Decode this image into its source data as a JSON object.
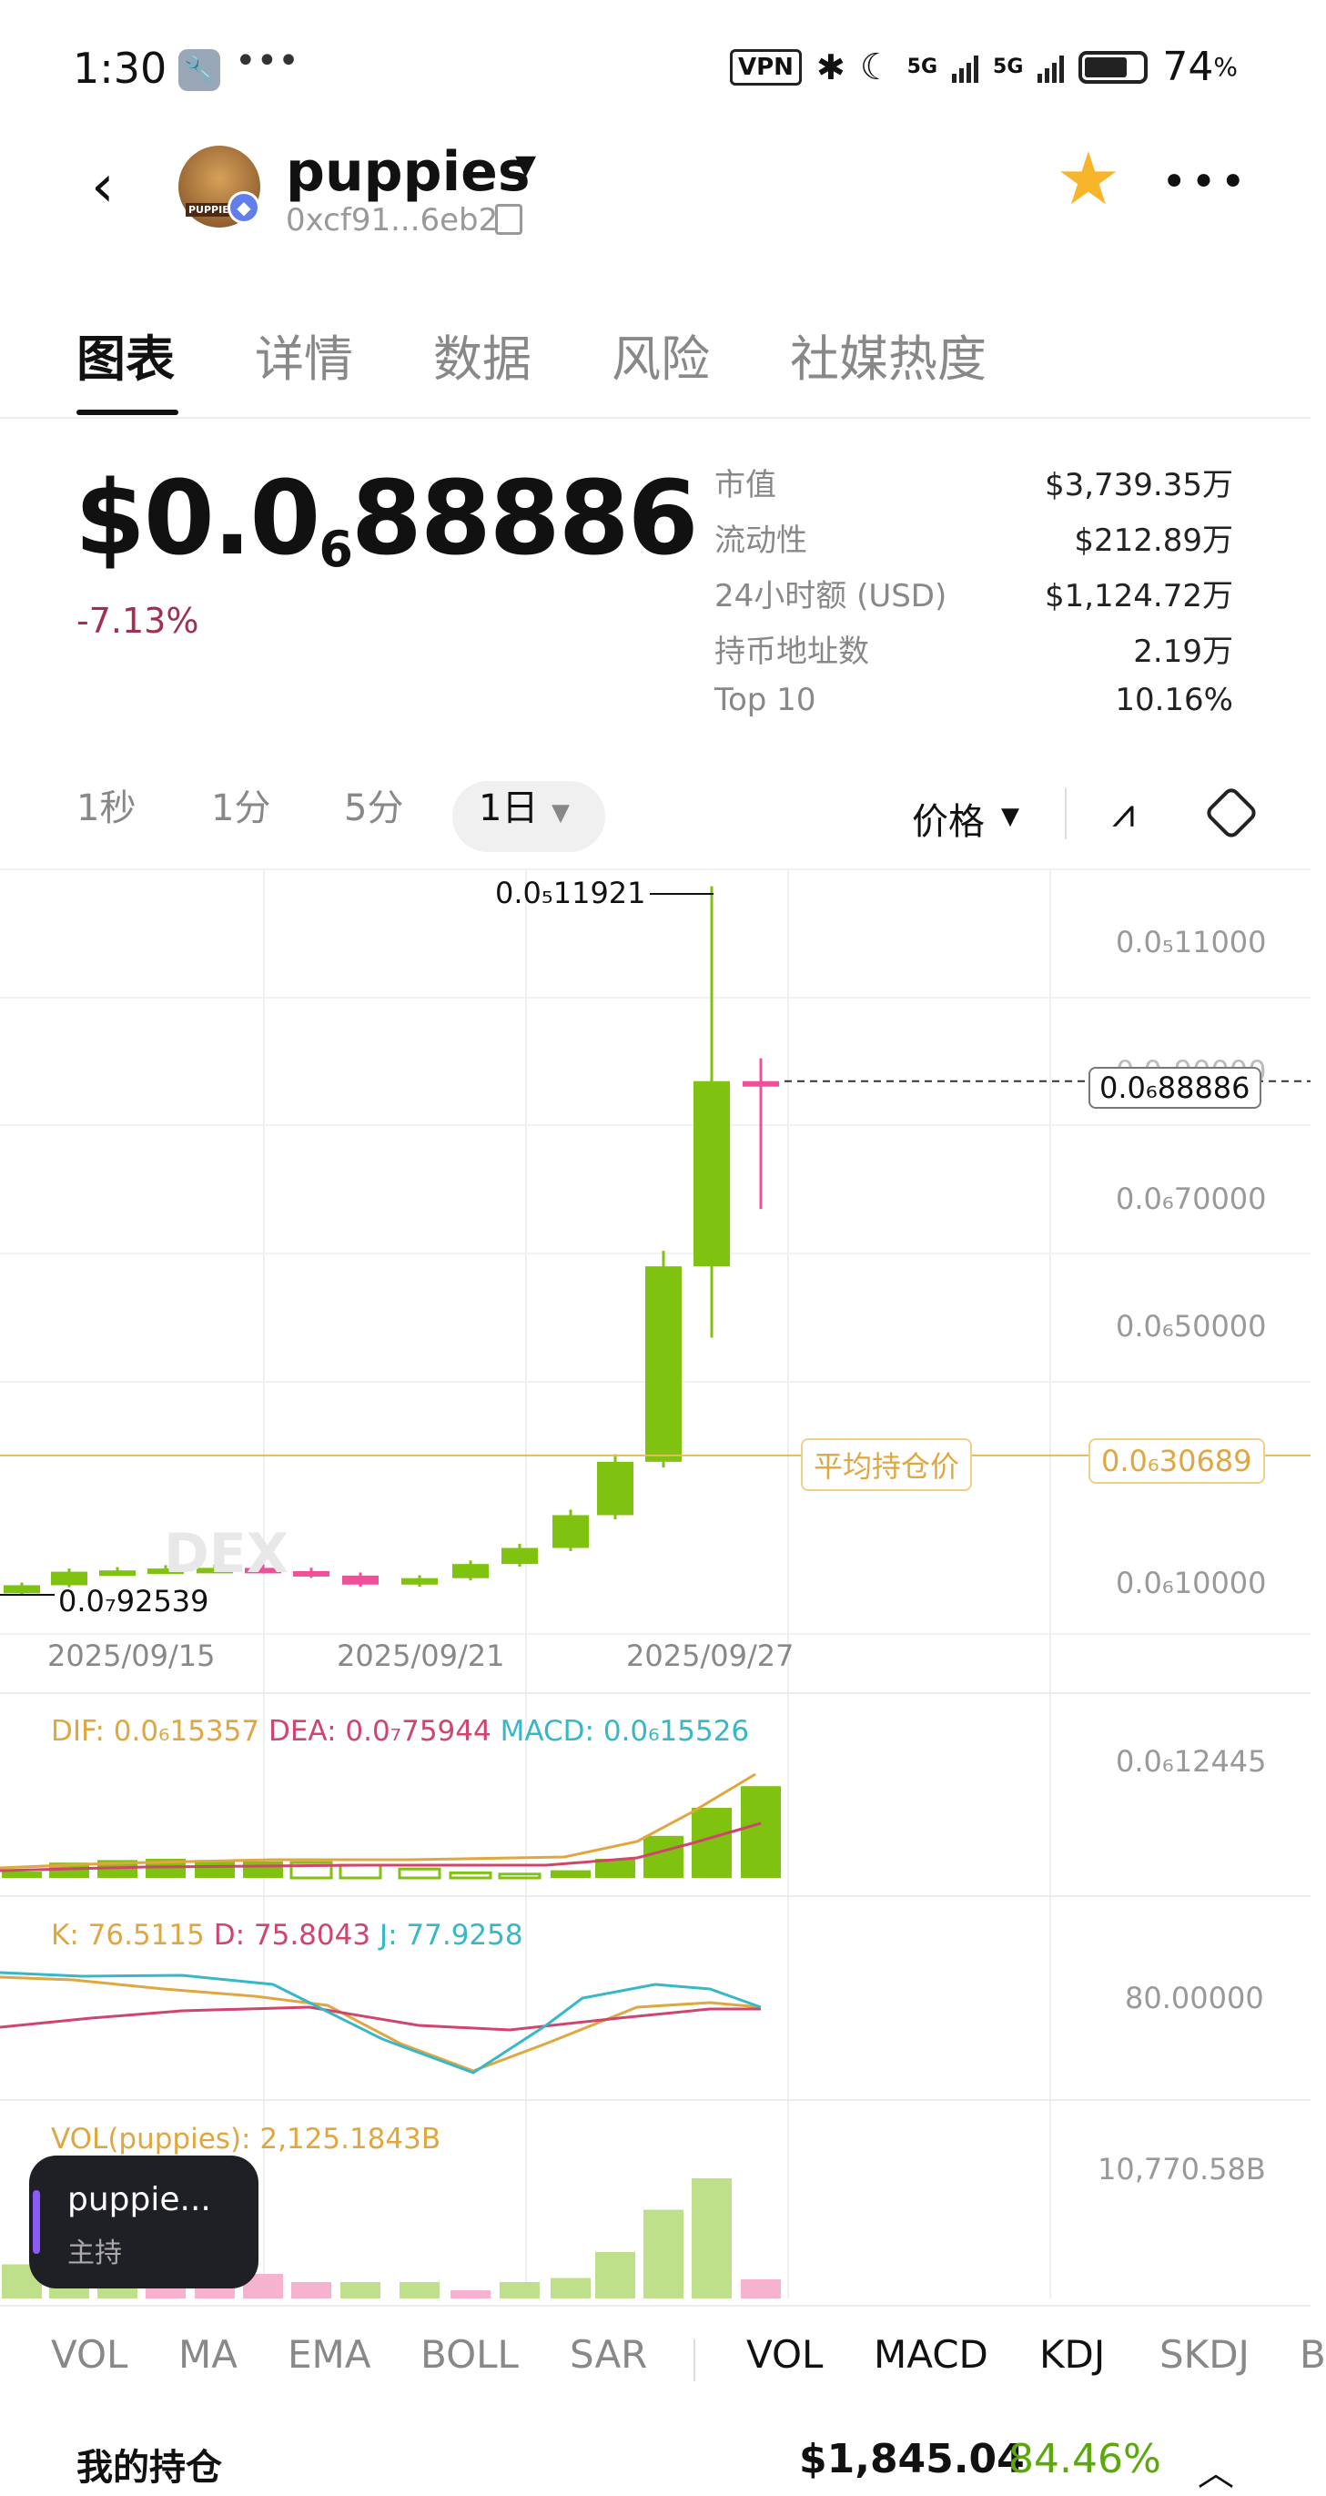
{
  "status_bar": {
    "time": "1:30",
    "icons": [
      "wrench-icon",
      "more-dots-icon"
    ],
    "vpn": "VPN",
    "net1": "5G",
    "net2": "5G",
    "battery": "74",
    "battery_unit": "%"
  },
  "token": {
    "name": "puppies",
    "address": "0xcf91...6eb2",
    "avatar_text": "PUPPIES"
  },
  "tabs": [
    "图表",
    "详情",
    "数据",
    "风险",
    "社媒热度"
  ],
  "price": {
    "main": "$0.0",
    "sub": "6",
    "rest": "88886",
    "change": "-7.13%"
  },
  "stats": [
    {
      "k": "市值",
      "v": "$3,739.35万"
    },
    {
      "k": "流动性",
      "v": "$212.89万"
    },
    {
      "k": "24小时额 (USD)",
      "v": "$1,124.72万"
    },
    {
      "k": "持币地址数",
      "v": "2.19万"
    },
    {
      "k": "Top 10",
      "v": "10.16%"
    }
  ],
  "timeframes": [
    "1秒",
    "1分",
    "5分",
    "1日"
  ],
  "price_mode": "价格",
  "chart": {
    "high_label": "0.0₅11921",
    "low_label": "0.0₇92539",
    "y_labels": [
      "0.0₅11000",
      "0.0₆90000",
      "0.0₆70000",
      "0.0₆50000",
      "0.0₆10000"
    ],
    "current_label": "0.0₆88886",
    "avg_label": "平均持仓价",
    "avg_value": "0.0₆30689",
    "x_labels": [
      "2025/09/15",
      "2025/09/21",
      "2025/09/27"
    ],
    "watermark": "DEX",
    "colors": {
      "up": "#7fc20f",
      "down": "#f0509a",
      "avg": "#e8b95a"
    }
  },
  "chart_data": [
    {
      "type": "candlestick",
      "x": [
        "2025/09/13",
        "2025/09/14",
        "2025/09/15",
        "2025/09/16",
        "2025/09/17",
        "2025/09/18",
        "2025/09/19",
        "2025/09/20",
        "2025/09/21",
        "2025/09/22",
        "2025/09/23",
        "2025/09/24",
        "2025/09/25",
        "2025/09/26",
        "2025/09/27",
        "2025/09/28"
      ],
      "open": [
        9.25e-08,
        1.05e-07,
        1.26e-07,
        1.28e-07,
        1.31e-07,
        1.32e-07,
        1.27e-07,
        1.2e-07,
        1.06e-07,
        1.16e-07,
        1.38e-07,
        1.63e-07,
        2.14e-07,
        2.97e-07,
        6.01e-07,
        8.89e-07
      ],
      "close": [
        1.05e-07,
        1.26e-07,
        1.28e-07,
        1.31e-07,
        1.32e-07,
        1.27e-07,
        1.2e-07,
        1.06e-07,
        1.16e-07,
        1.38e-07,
        1.63e-07,
        2.14e-07,
        2.97e-07,
        6.01e-07,
        8.89e-07,
        8.88e-07
      ],
      "ylabel": "",
      "xlabel": ""
    },
    {
      "type": "line",
      "name": "MACD",
      "series": [
        {
          "name": "DIF",
          "value": "0.0₆15357"
        },
        {
          "name": "DEA",
          "value": "0.0₇75944"
        },
        {
          "name": "MACD",
          "value": "0.0₆15526"
        }
      ],
      "y_label": "0.0₆12445"
    },
    {
      "type": "line",
      "name": "KDJ",
      "series": [
        {
          "name": "K",
          "value": "76.5115"
        },
        {
          "name": "D",
          "value": "75.8043"
        },
        {
          "name": "J",
          "value": "77.9258"
        }
      ],
      "y_label": "80.00000"
    },
    {
      "type": "bar",
      "name": "VOL",
      "series": [
        {
          "name": "VOL(puppies)",
          "value": "2,125.1843B"
        }
      ],
      "y_label": "10,770.58B"
    }
  ],
  "indicators_left": [
    "VOL",
    "MA",
    "EMA",
    "BOLL",
    "SAR"
  ],
  "indicators_right": [
    "VOL",
    "MACD",
    "KDJ",
    "SKDJ",
    "B"
  ],
  "float_card": {
    "title": "puppie...",
    "subtitle": "主持"
  },
  "holdings": {
    "label": "我的持仓",
    "value": "$1,845.04",
    "pct": "84.46%"
  }
}
